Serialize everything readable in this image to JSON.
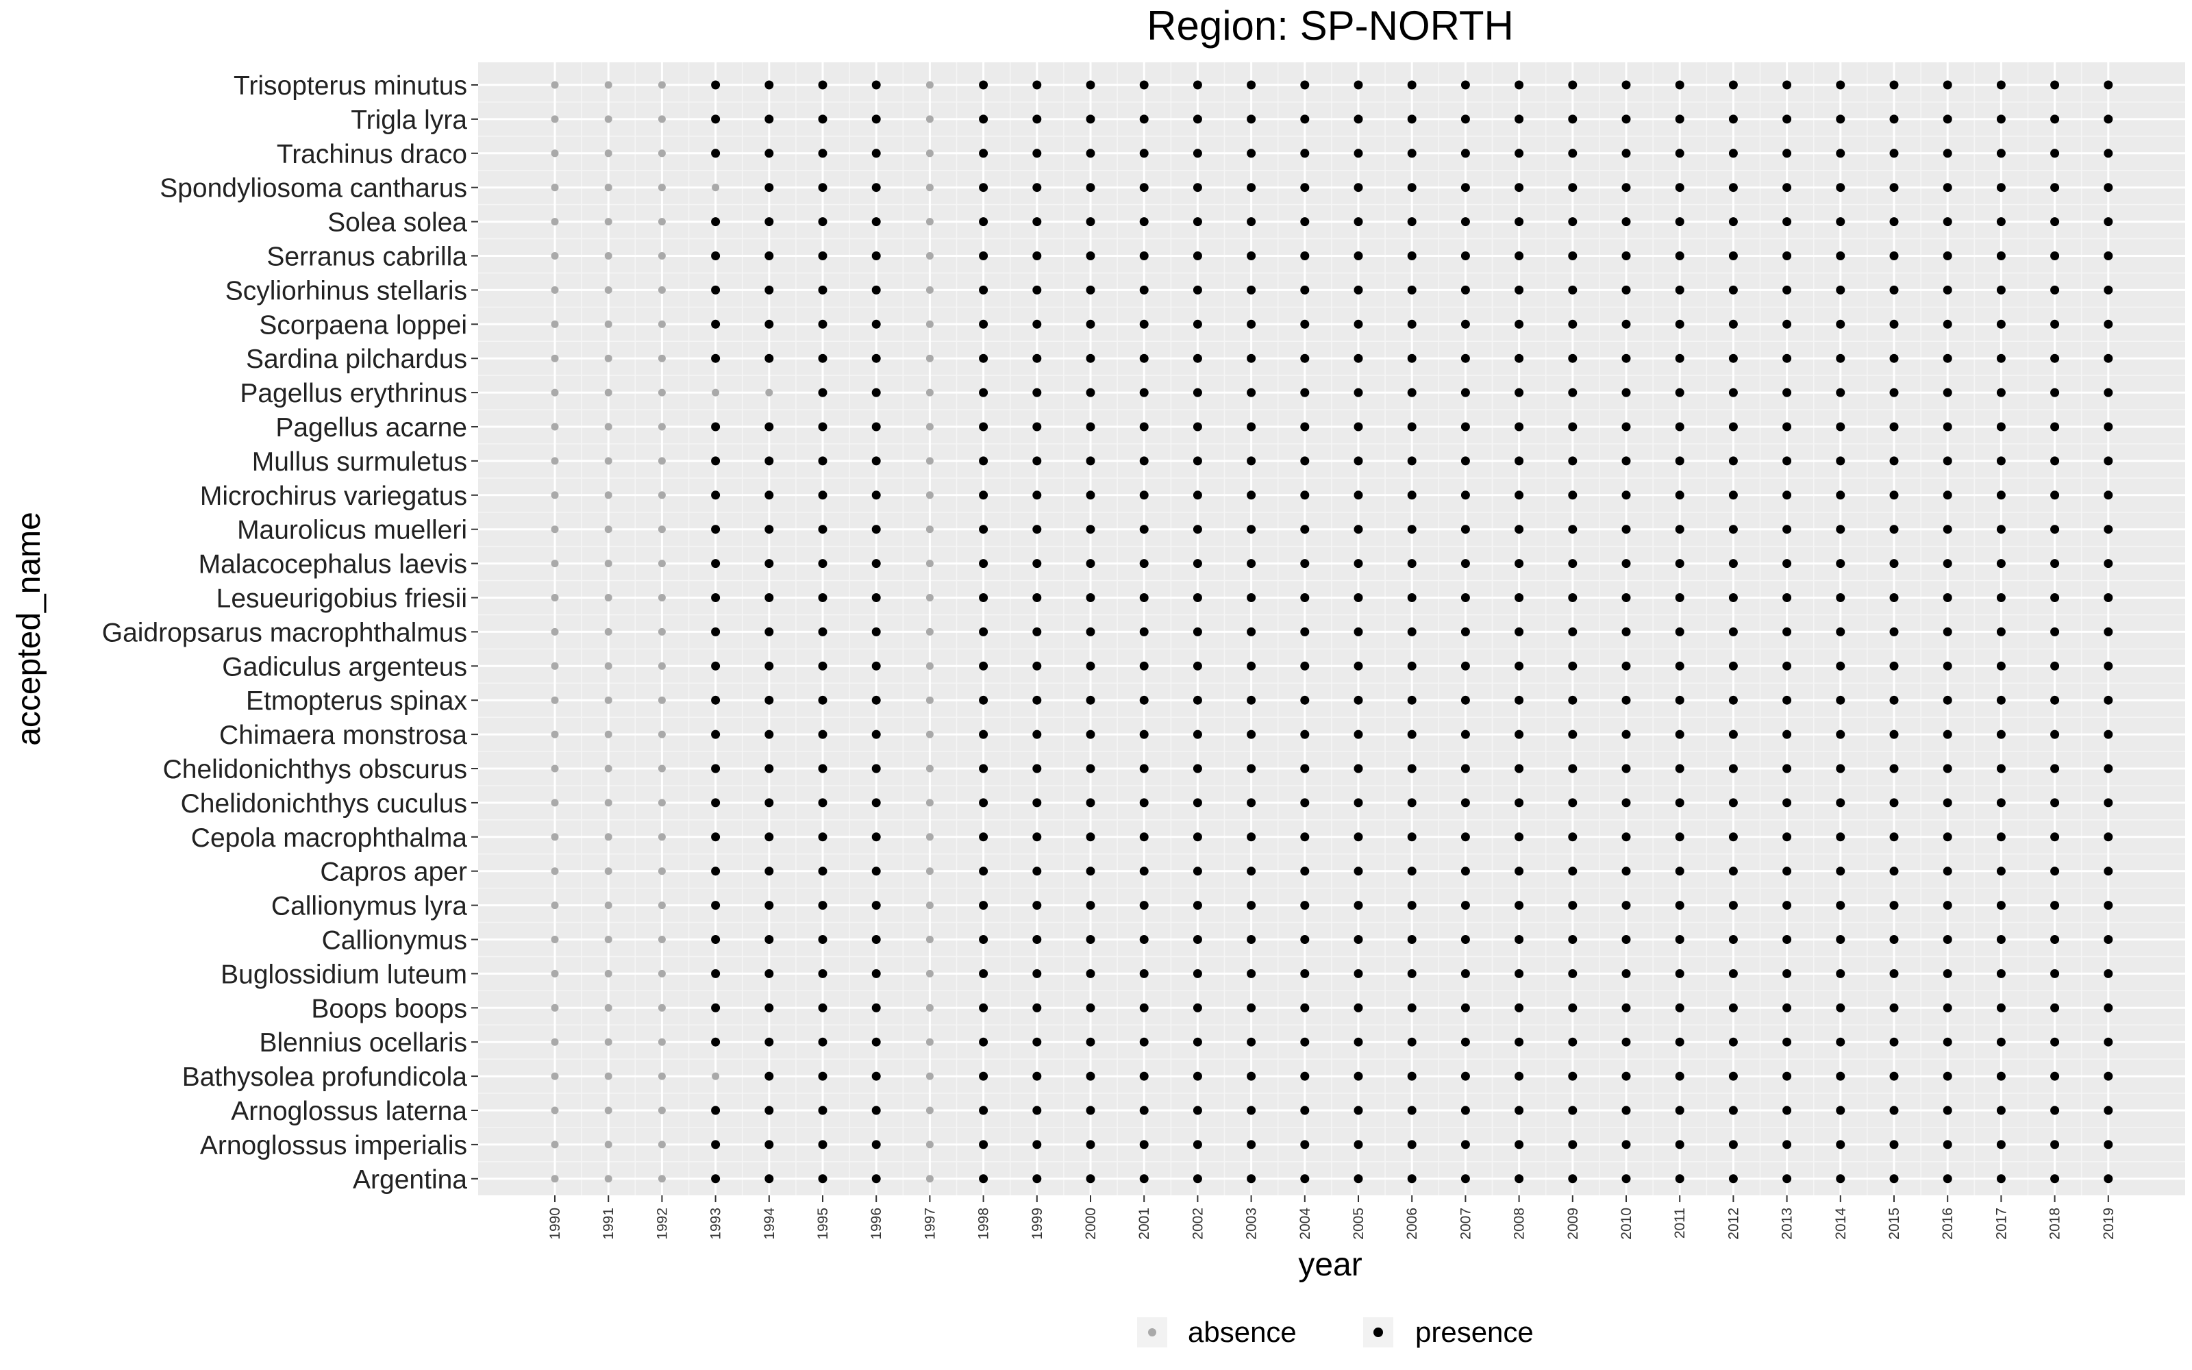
{
  "chart_data": {
    "type": "scatter",
    "title": "Region: SP-NORTH",
    "xlabel": "year",
    "ylabel": "accepted_name",
    "x": [
      "1990",
      "1991",
      "1992",
      "1993",
      "1994",
      "1995",
      "1996",
      "1997",
      "1998",
      "1999",
      "2000",
      "2001",
      "2002",
      "2003",
      "2004",
      "2005",
      "2006",
      "2007",
      "2008",
      "2009",
      "2010",
      "2011",
      "2012",
      "2013",
      "2014",
      "2015",
      "2016",
      "2017",
      "2018",
      "2019"
    ],
    "y_categories": [
      "Trisopterus minutus",
      "Trigla lyra",
      "Trachinus draco",
      "Spondyliosoma cantharus",
      "Solea solea",
      "Serranus cabrilla",
      "Scyliorhinus stellaris",
      "Scorpaena loppei",
      "Sardina pilchardus",
      "Pagellus erythrinus",
      "Pagellus acarne",
      "Mullus surmuletus",
      "Microchirus variegatus",
      "Maurolicus muelleri",
      "Malacocephalus laevis",
      "Lesueurigobius friesii",
      "Gaidropsarus macrophthalmus",
      "Gadiculus argenteus",
      "Etmopterus spinax",
      "Chimaera monstrosa",
      "Chelidonichthys obscurus",
      "Chelidonichthys cuculus",
      "Cepola macrophthalma",
      "Capros aper",
      "Callionymus lyra",
      "Callionymus",
      "Buglossidium luteum",
      "Boops boops",
      "Blennius ocellaris",
      "Bathysolea profundicola",
      "Arnoglossus laterna",
      "Arnoglossus imperialis",
      "Argentina"
    ],
    "legend_position": "bottom",
    "grid": true,
    "series": [
      {
        "name": "absence",
        "color": "#a9a9a9"
      },
      {
        "name": "presence",
        "color": "#000000"
      }
    ],
    "absent_years_all": [
      "1990",
      "1991",
      "1992",
      "1997"
    ],
    "absent_years_extra": {
      "Spondyliosoma cantharus": [
        "1993"
      ],
      "Pagellus erythrinus": [
        "1993",
        "1994"
      ],
      "Bathysolea profundicola": [
        "1993"
      ]
    }
  },
  "legend": {
    "absence_label": "absence",
    "presence_label": "presence"
  }
}
